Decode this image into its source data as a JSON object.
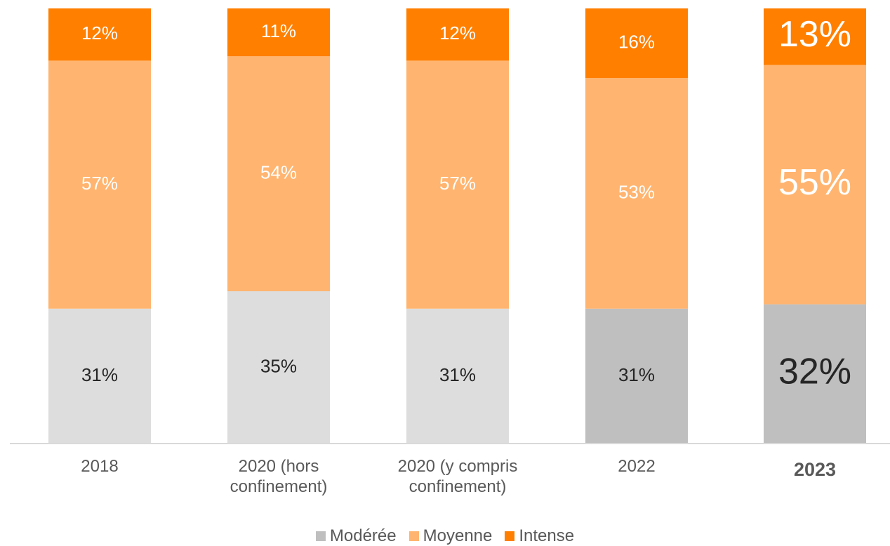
{
  "chart_data": {
    "type": "bar",
    "stacked": true,
    "percent": true,
    "categories": [
      "2018",
      "2020 (hors confinement)",
      "2020 (y compris confinement)",
      "2022",
      "2023"
    ],
    "category_lines": [
      [
        "2018"
      ],
      [
        "2020 (hors",
        "confinement)"
      ],
      [
        "2020 (y compris",
        "confinement)"
      ],
      [
        "2022"
      ],
      [
        "2023"
      ]
    ],
    "highlight_category": "2023",
    "series": [
      {
        "name": "Modérée",
        "values": [
          31,
          35,
          31,
          31,
          32
        ],
        "labels": [
          "31%",
          "35%",
          "31%",
          "31%",
          "32%"
        ],
        "colors": [
          "#DDDDDD",
          "#DDDDDD",
          "#DDDDDD",
          "#BFBFBF",
          "#BFBFBF"
        ],
        "label_color": "#262626"
      },
      {
        "name": "Moyenne",
        "values": [
          57,
          54,
          57,
          53,
          55
        ],
        "labels": [
          "57%",
          "54%",
          "57%",
          "53%",
          "55%"
        ],
        "colors": [
          "#FFB570",
          "#FFB570",
          "#FFB570",
          "#FFB570",
          "#FFB570"
        ],
        "label_color": "#ffffff"
      },
      {
        "name": "Intense",
        "values": [
          12,
          11,
          12,
          16,
          13
        ],
        "labels": [
          "12%",
          "11%",
          "12%",
          "16%",
          "13%"
        ],
        "colors": [
          "#FF7F00",
          "#FF7F00",
          "#FF7F00",
          "#FF7F00",
          "#FF7F00"
        ],
        "label_color": "#ffffff"
      }
    ],
    "legend": {
      "position": "bottom",
      "items": [
        {
          "name": "Modérée",
          "color": "#BFBFBF"
        },
        {
          "name": "Moyenne",
          "color": "#FFB570"
        },
        {
          "name": "Intense",
          "color": "#FF7F00"
        }
      ]
    },
    "title": "",
    "xlabel": "",
    "ylabel": "",
    "ylim": [
      0,
      100
    ],
    "grid": false
  }
}
